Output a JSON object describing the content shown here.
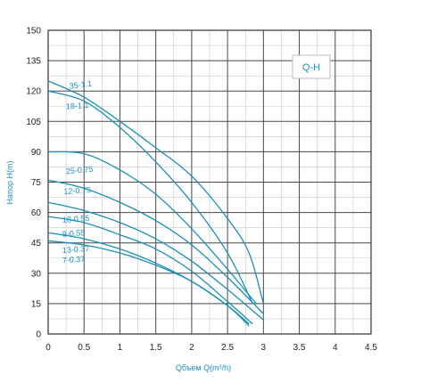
{
  "chart_data": {
    "type": "line",
    "title": "",
    "legend_box_text": "Q-H",
    "xlabel": "Qбъем Q(m³/h)",
    "ylabel": "Напор H(m)",
    "xlim": [
      0,
      4.5
    ],
    "ylim": [
      0,
      150
    ],
    "x_ticks": [
      "0",
      "0.5",
      "1",
      "1.5",
      "2",
      "2.5",
      "3",
      "3.5",
      "4",
      "4.5"
    ],
    "y_ticks": [
      "0",
      "15",
      "30",
      "45",
      "60",
      "75",
      "90",
      "105",
      "120",
      "135",
      "150"
    ],
    "grid": true,
    "series": [
      {
        "name": "35-1.1",
        "x": [
          0,
          0.5,
          1,
          1.5,
          2,
          2.5,
          2.8,
          3.0
        ],
        "y": [
          125,
          117,
          105,
          92,
          78,
          57,
          40,
          15
        ]
      },
      {
        "name": "18-1.1",
        "x": [
          0,
          0.5,
          1,
          1.5,
          2,
          2.5,
          2.85
        ],
        "y": [
          120,
          115,
          102,
          85,
          65,
          40,
          15
        ]
      },
      {
        "name": "25-0.75",
        "x": [
          0,
          0.5,
          1,
          1.5,
          2,
          2.5,
          2.9
        ],
        "y": [
          90,
          89,
          81,
          69,
          52,
          32,
          15
        ]
      },
      {
        "name": "12-0.75",
        "x": [
          0,
          0.5,
          1,
          1.5,
          2,
          2.5,
          3.0
        ],
        "y": [
          76,
          72,
          65,
          56,
          44,
          28,
          10
        ]
      },
      {
        "name": "18-0.55",
        "x": [
          0,
          0.5,
          1,
          1.5,
          2,
          2.5,
          3.0
        ],
        "y": [
          65,
          61,
          55,
          47,
          36,
          22,
          7
        ]
      },
      {
        "name": "9-0.55",
        "x": [
          0,
          0.5,
          1,
          1.5,
          2,
          2.5,
          2.85
        ],
        "y": [
          58,
          55,
          49,
          42,
          31,
          16,
          5
        ]
      },
      {
        "name": "13-0.37",
        "x": [
          0,
          0.5,
          1,
          1.5,
          2,
          2.5,
          2.8
        ],
        "y": [
          50,
          47,
          42,
          35,
          26,
          14,
          5
        ]
      },
      {
        "name": "7-0.37",
        "x": [
          0,
          0.5,
          1,
          1.5,
          2,
          2.5,
          2.8
        ],
        "y": [
          46,
          44,
          40,
          34,
          26,
          14,
          4
        ]
      }
    ]
  }
}
